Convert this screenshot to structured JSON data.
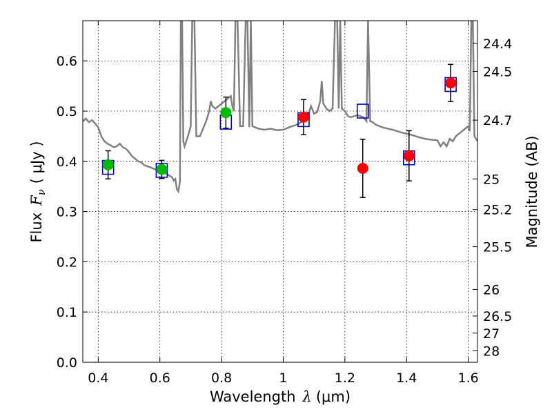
{
  "chart_data": {
    "type": "scatter",
    "xlabel_prefix": "Wavelength",
    "xlabel_symbol": "λ",
    "xlabel_unit": "(μm)",
    "ylabel_prefix": "Flux",
    "ylabel_symbol": "F",
    "ylabel_sub": "ν",
    "ylabel_unit": "( μJy )",
    "y2label": "Magnitude (AB)",
    "xlim": [
      0.35,
      1.63
    ],
    "ylim": [
      0.0,
      0.68
    ],
    "xticks": [
      0.4,
      0.6,
      0.8,
      1.0,
      1.2,
      1.4,
      1.6
    ],
    "xtick_labels": [
      "0.4",
      "0.6",
      "0.8",
      "1",
      "1.2",
      "1.4",
      "1.6"
    ],
    "yticks": [
      0.0,
      0.1,
      0.2,
      0.3,
      0.4,
      0.5,
      0.6
    ],
    "ytick_labels": [
      "0.0",
      "0.1",
      "0.2",
      "0.3",
      "0.4",
      "0.5",
      "0.6"
    ],
    "mag_ticks": [
      {
        "label": "24.4",
        "flux": 0.635
      },
      {
        "label": "24.5",
        "flux": 0.579
      },
      {
        "label": "24.7",
        "flux": 0.482
      },
      {
        "label": "25",
        "flux": 0.365
      },
      {
        "label": "25.2",
        "flux": 0.304
      },
      {
        "label": "25.5",
        "flux": 0.23
      },
      {
        "label": "26",
        "flux": 0.145
      },
      {
        "label": "26.5",
        "flux": 0.092
      },
      {
        "label": "27",
        "flux": 0.058
      },
      {
        "label": "28",
        "flux": 0.023
      }
    ],
    "grid": true,
    "observed_green": [
      {
        "x": 0.432,
        "y": 0.393,
        "err": 0.028
      },
      {
        "x": 0.606,
        "y": 0.384,
        "err": 0.018
      },
      {
        "x": 0.814,
        "y": 0.497,
        "err": 0.031
      }
    ],
    "observed_red": [
      {
        "x": 1.066,
        "y": 0.488,
        "err": 0.035
      },
      {
        "x": 1.258,
        "y": 0.386,
        "err": 0.058
      },
      {
        "x": 1.408,
        "y": 0.411,
        "err": 0.05
      },
      {
        "x": 1.543,
        "y": 0.556,
        "err": 0.037
      }
    ],
    "model_boxes": [
      {
        "x": 0.432,
        "y": 0.388
      },
      {
        "x": 0.606,
        "y": 0.382
      },
      {
        "x": 0.814,
        "y": 0.478
      },
      {
        "x": 1.066,
        "y": 0.483
      },
      {
        "x": 1.258,
        "y": 0.5
      },
      {
        "x": 1.408,
        "y": 0.407
      },
      {
        "x": 1.543,
        "y": 0.553
      }
    ],
    "template_spectrum": [
      [
        0.35,
        0.48
      ],
      [
        0.36,
        0.485
      ],
      [
        0.37,
        0.478
      ],
      [
        0.38,
        0.482
      ],
      [
        0.39,
        0.475
      ],
      [
        0.4,
        0.468
      ],
      [
        0.41,
        0.45
      ],
      [
        0.415,
        0.445
      ],
      [
        0.42,
        0.44
      ],
      [
        0.43,
        0.435
      ],
      [
        0.44,
        0.432
      ],
      [
        0.45,
        0.428
      ],
      [
        0.46,
        0.43
      ],
      [
        0.47,
        0.435
      ],
      [
        0.48,
        0.428
      ],
      [
        0.49,
        0.425
      ],
      [
        0.5,
        0.418
      ],
      [
        0.51,
        0.41
      ],
      [
        0.52,
        0.405
      ],
      [
        0.53,
        0.4
      ],
      [
        0.54,
        0.398
      ],
      [
        0.55,
        0.392
      ],
      [
        0.56,
        0.39
      ],
      [
        0.57,
        0.388
      ],
      [
        0.58,
        0.385
      ],
      [
        0.59,
        0.383
      ],
      [
        0.6,
        0.382
      ],
      [
        0.61,
        0.378
      ],
      [
        0.62,
        0.375
      ],
      [
        0.63,
        0.372
      ],
      [
        0.64,
        0.368
      ],
      [
        0.645,
        0.362
      ],
      [
        0.65,
        0.365
      ],
      [
        0.655,
        0.345
      ],
      [
        0.66,
        0.34
      ],
      [
        0.665,
        0.36
      ],
      [
        0.668,
        0.68
      ],
      [
        0.672,
        0.68
      ],
      [
        0.676,
        0.44
      ],
      [
        0.68,
        0.43
      ],
      [
        0.69,
        0.448
      ],
      [
        0.7,
        0.47
      ],
      [
        0.705,
        0.68
      ],
      [
        0.712,
        0.68
      ],
      [
        0.718,
        0.45
      ],
      [
        0.73,
        0.45
      ],
      [
        0.74,
        0.465
      ],
      [
        0.75,
        0.48
      ],
      [
        0.76,
        0.5
      ],
      [
        0.765,
        0.52
      ],
      [
        0.77,
        0.51
      ],
      [
        0.78,
        0.505
      ],
      [
        0.79,
        0.51
      ],
      [
        0.8,
        0.515
      ],
      [
        0.81,
        0.52
      ],
      [
        0.82,
        0.525
      ],
      [
        0.83,
        0.53
      ],
      [
        0.835,
        0.51
      ],
      [
        0.84,
        0.5
      ],
      [
        0.845,
        0.68
      ],
      [
        0.852,
        0.68
      ],
      [
        0.86,
        0.47
      ],
      [
        0.87,
        0.47
      ],
      [
        0.878,
        0.68
      ],
      [
        0.884,
        0.68
      ],
      [
        0.89,
        0.468
      ],
      [
        0.895,
        0.68
      ],
      [
        0.9,
        0.47
      ],
      [
        0.92,
        0.465
      ],
      [
        0.94,
        0.463
      ],
      [
        0.96,
        0.465
      ],
      [
        0.98,
        0.462
      ],
      [
        1.0,
        0.463
      ],
      [
        1.02,
        0.468
      ],
      [
        1.04,
        0.472
      ],
      [
        1.06,
        0.478
      ],
      [
        1.08,
        0.49
      ],
      [
        1.09,
        0.51
      ],
      [
        1.1,
        0.495
      ],
      [
        1.11,
        0.498
      ],
      [
        1.12,
        0.52
      ],
      [
        1.125,
        0.56
      ],
      [
        1.13,
        0.515
      ],
      [
        1.14,
        0.505
      ],
      [
        1.15,
        0.5
      ],
      [
        1.16,
        0.505
      ],
      [
        1.168,
        0.68
      ],
      [
        1.175,
        0.68
      ],
      [
        1.18,
        0.505
      ],
      [
        1.185,
        0.68
      ],
      [
        1.19,
        0.505
      ],
      [
        1.2,
        0.5
      ],
      [
        1.21,
        0.49
      ],
      [
        1.22,
        0.488
      ],
      [
        1.23,
        0.49
      ],
      [
        1.24,
        0.492
      ],
      [
        1.25,
        0.49
      ],
      [
        1.26,
        0.488
      ],
      [
        1.27,
        0.48
      ],
      [
        1.275,
        0.68
      ],
      [
        1.282,
        0.48
      ],
      [
        1.29,
        0.478
      ],
      [
        1.3,
        0.473
      ],
      [
        1.32,
        0.468
      ],
      [
        1.34,
        0.465
      ],
      [
        1.36,
        0.462
      ],
      [
        1.38,
        0.458
      ],
      [
        1.4,
        0.455
      ],
      [
        1.42,
        0.452
      ],
      [
        1.44,
        0.448
      ],
      [
        1.46,
        0.445
      ],
      [
        1.48,
        0.443
      ],
      [
        1.5,
        0.442
      ],
      [
        1.51,
        0.43
      ],
      [
        1.52,
        0.438
      ],
      [
        1.53,
        0.43
      ],
      [
        1.54,
        0.445
      ],
      [
        1.55,
        0.44
      ],
      [
        1.56,
        0.45
      ],
      [
        1.57,
        0.455
      ],
      [
        1.58,
        0.46
      ],
      [
        1.59,
        0.465
      ],
      [
        1.6,
        0.47
      ],
      [
        1.605,
        0.46
      ],
      [
        1.61,
        0.68
      ],
      [
        1.615,
        0.68
      ],
      [
        1.62,
        0.45
      ],
      [
        1.63,
        0.44
      ]
    ],
    "colors": {
      "spectrum": "#808080",
      "green": "#00bb00",
      "red": "#ff0000",
      "box": "#0000cc",
      "errbar": "#000000",
      "grid": "#000000"
    }
  }
}
